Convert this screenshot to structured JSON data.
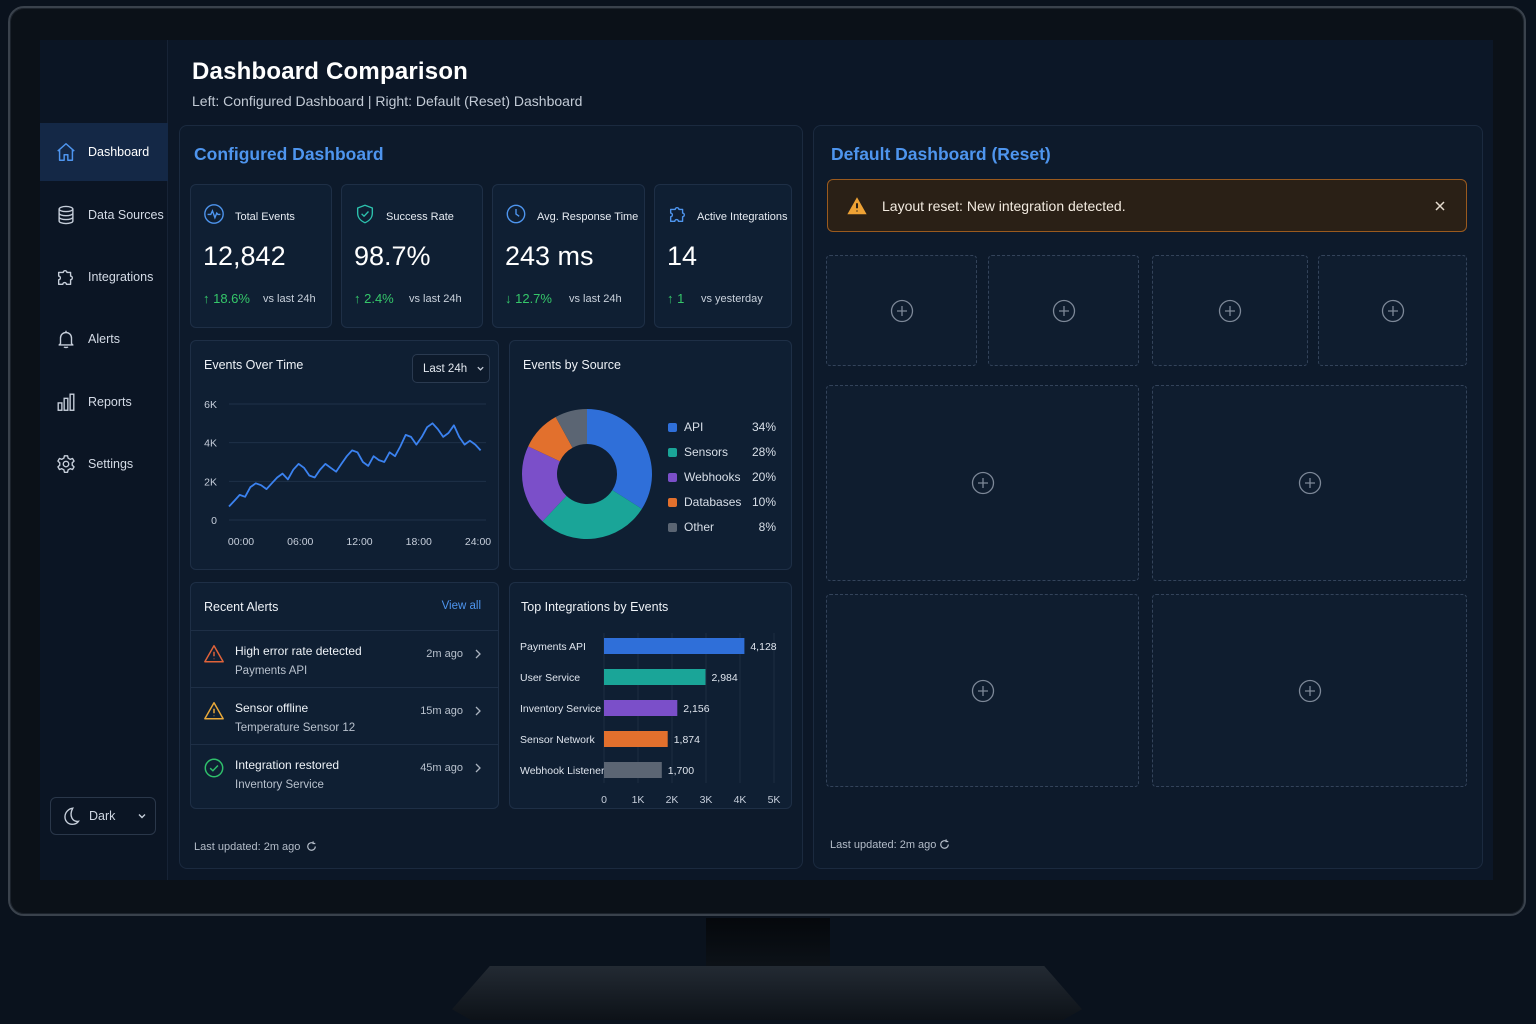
{
  "header": {
    "title": "Dashboard Comparison",
    "subtitle": "Left: Configured Dashboard  |  Right: Default (Reset) Dashboard"
  },
  "sidebar": {
    "items": [
      {
        "label": "Dashboard",
        "icon": "home-icon",
        "active": true
      },
      {
        "label": "Data Sources",
        "icon": "database-icon"
      },
      {
        "label": "Integrations",
        "icon": "puzzle-icon"
      },
      {
        "label": "Alerts",
        "icon": "bell-icon"
      },
      {
        "label": "Reports",
        "icon": "bar-chart-icon"
      },
      {
        "label": "Settings",
        "icon": "gear-icon"
      }
    ],
    "theme": {
      "label": "Dark",
      "icon": "moon-icon"
    }
  },
  "configured": {
    "title": "Configured Dashboard",
    "stats": [
      {
        "label": "Total Events",
        "value": "12,842",
        "delta": "↑ 18.6%",
        "compare": "vs last 24h",
        "icon": "activity-icon"
      },
      {
        "label": "Success Rate",
        "value": "98.7%",
        "delta": "↑ 2.4%",
        "compare": "vs last 24h",
        "icon": "shield-check-icon"
      },
      {
        "label": "Avg. Response Time",
        "value": "243 ms",
        "delta": "↓ 12.7%",
        "compare": "vs last 24h",
        "icon": "clock-icon"
      },
      {
        "label": "Active Integrations",
        "value": "14",
        "delta": "↑ 1",
        "compare": "vs yesterday",
        "icon": "puzzle-icon"
      }
    ],
    "events_over_time": {
      "title": "Events Over Time",
      "range_select": "Last 24h"
    },
    "events_by_source": {
      "title": "Events by Source"
    },
    "recent_alerts": {
      "title": "Recent Alerts",
      "view_all": "View all",
      "items": [
        {
          "title": "High error rate detected",
          "source": "Payments API",
          "time": "2m ago",
          "status": "error",
          "color": "#e0633a"
        },
        {
          "title": "Sensor offline",
          "source": "Temperature Sensor 12",
          "time": "15m ago",
          "status": "warning",
          "color": "#e9a93a"
        },
        {
          "title": "Integration restored",
          "source": "Inventory Service",
          "time": "45m ago",
          "status": "ok",
          "color": "#2fbf6b"
        }
      ]
    },
    "top_integrations": {
      "title": "Top Integrations by Events"
    },
    "footer": "Last updated: 2m ago"
  },
  "default_dashboard": {
    "title": "Default Dashboard (Reset)",
    "banner": "Layout reset: New integration detected.",
    "footer": "Last updated: 2m ago"
  },
  "colors": {
    "accent": "#4e95ee",
    "api": "#2f6fd9",
    "sensors": "#1aa598",
    "webhooks": "#7b4fc9",
    "databases": "#e2702d",
    "other": "#5b6573",
    "positive": "#35c76a",
    "warning": "#e9a93a"
  },
  "chart_data": [
    {
      "type": "line",
      "title": "Events Over Time",
      "x_ticks": [
        "00:00",
        "06:00",
        "12:00",
        "18:00",
        "24:00"
      ],
      "y_ticks": [
        "0",
        "2K",
        "4K",
        "6K"
      ],
      "ylim": [
        0,
        6000
      ],
      "xlim": [
        0,
        24
      ],
      "series": [
        {
          "x": [
            0,
            0.5,
            1,
            1.5,
            2,
            2.5,
            3,
            3.5,
            4,
            4.5,
            5,
            5.5,
            6,
            6.5,
            7,
            7.5,
            8,
            8.5,
            9,
            9.5,
            10,
            10.5,
            11,
            11.5,
            12,
            12.5,
            13,
            13.5,
            14,
            14.5,
            15,
            15.5,
            16,
            16.5,
            17,
            17.5,
            18,
            18.5,
            19,
            19.5,
            20,
            20.5,
            21,
            21.5,
            22,
            22.5,
            23,
            23.5
          ],
          "y": [
            700,
            1000,
            1300,
            1200,
            1700,
            1900,
            1800,
            1600,
            1900,
            2200,
            2400,
            2100,
            2600,
            2900,
            2700,
            2300,
            2200,
            2600,
            2900,
            2700,
            2500,
            2900,
            3300,
            3600,
            3500,
            3000,
            2800,
            3300,
            3100,
            3000,
            3500,
            3300,
            3800,
            4400,
            4300,
            3900,
            4300,
            4800,
            5000,
            4700,
            4300,
            4500,
            4900,
            4300,
            3900,
            4100,
            3900,
            3600
          ]
        }
      ]
    },
    {
      "type": "pie",
      "title": "Events by Source",
      "labels": [
        "API",
        "Sensors",
        "Webhooks",
        "Databases",
        "Other"
      ],
      "values": [
        34,
        28,
        20,
        10,
        8
      ],
      "value_labels": [
        "34%",
        "28%",
        "20%",
        "10%",
        "8%"
      ],
      "legend": "right"
    },
    {
      "type": "bar",
      "title": "Top Integrations by Events",
      "orientation": "horizontal",
      "categories": [
        "Payments API",
        "User Service",
        "Inventory Service",
        "Sensor Network",
        "Webhook Listener"
      ],
      "values": [
        4128,
        2984,
        2156,
        1874,
        1700
      ],
      "value_labels": [
        "4,128",
        "2,984",
        "2,156",
        "1,874",
        "1,700"
      ],
      "x_ticks": [
        "0",
        "1K",
        "2K",
        "3K",
        "4K",
        "5K"
      ],
      "xlim": [
        0,
        5000
      ]
    }
  ]
}
